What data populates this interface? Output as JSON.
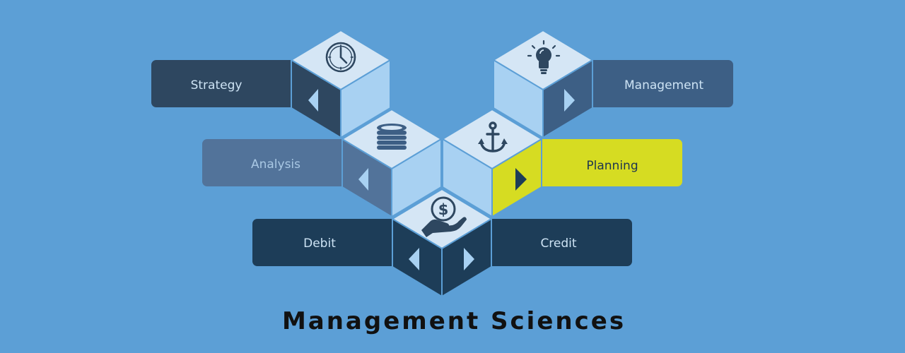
{
  "title": "Management Sciences",
  "labels": {
    "strategy": "Strategy",
    "management": "Management",
    "analysis": "Analysis",
    "planning": "Planning",
    "debit": "Debit",
    "credit": "Credit"
  },
  "icons": {
    "cube_strategy": "clock-icon",
    "cube_management": "lightbulb-icon",
    "cube_analysis": "coin-stack-icon",
    "cube_planning": "anchor-icon",
    "cube_finance": "hand-dollar-icon"
  },
  "colors": {
    "background": "#5c9fd6",
    "cube_top": "#d5e6f5",
    "cube_light_face": "#a8d1f2",
    "navy": "#2e4760",
    "steel_blue": "#3d5f85",
    "slate_blue": "#52739a",
    "dark_navy": "#1d3d58",
    "highlight_yellow": "#d6dc22",
    "label_text": "#cde3f4",
    "dark_text": "#1d3550",
    "title_text": "#111111"
  }
}
